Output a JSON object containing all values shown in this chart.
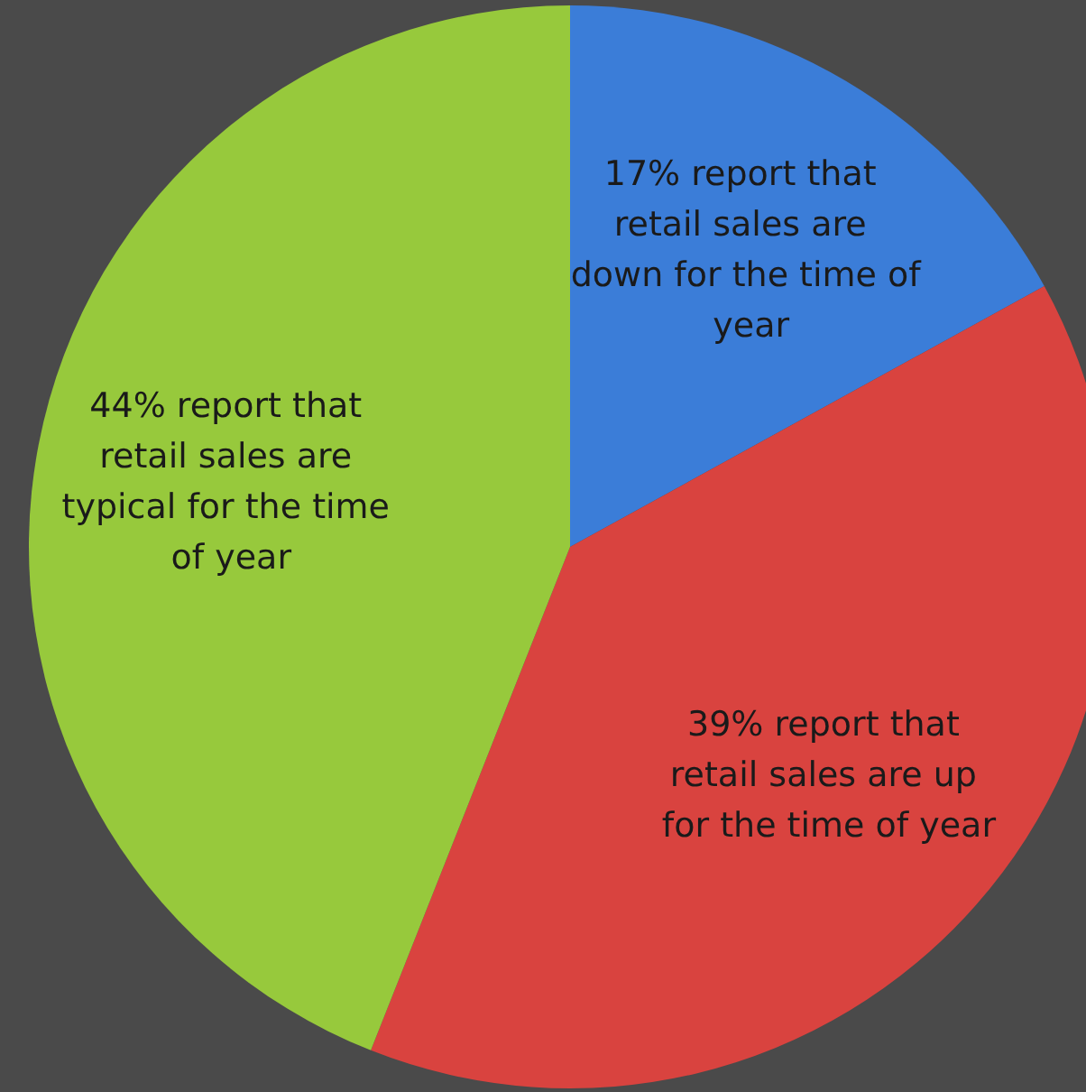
{
  "chart_data": {
    "type": "pie",
    "categories": [
      "17% report that retail sales are down for the time of year",
      "39% report that retail sales are up for the time of year",
      "44% report that retail sales are typical for the time of year"
    ],
    "values": [
      17,
      39,
      44
    ],
    "colors": [
      "#3b7dd8",
      "#d9433f",
      "#97c93c"
    ],
    "legend": false
  }
}
